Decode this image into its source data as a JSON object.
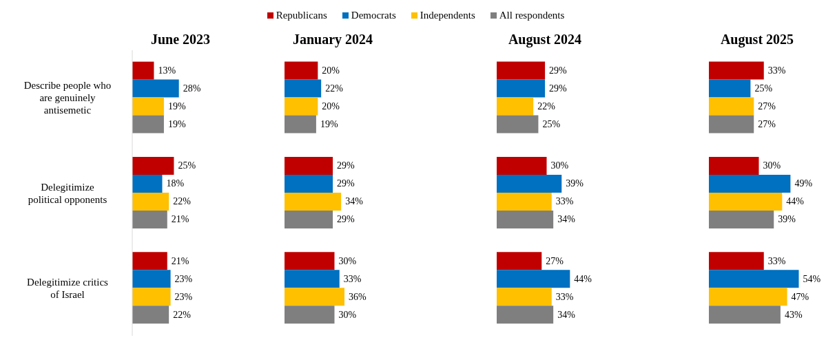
{
  "chart_data": [
    {
      "type": "bar",
      "orientation": "horizontal",
      "title": "June 2023",
      "categories": [
        "Describe people who are genuinely antisemetic",
        "Delegitimize political opponents",
        "Delegitimize critics of Israel"
      ],
      "tick_labels": "y",
      "legend": "top",
      "series": [
        {
          "name": "Republicans",
          "color": "#c00000",
          "values": [
            13,
            25,
            21
          ],
          "value_labels": [
            "13%",
            "25%",
            "21%"
          ]
        },
        {
          "name": "Democrats",
          "color": "#0070c0",
          "values": [
            28,
            18,
            23
          ],
          "value_labels": [
            "28%",
            "18%",
            "23%"
          ]
        },
        {
          "name": "Independents",
          "color": "#ffc000",
          "values": [
            19,
            22,
            23
          ],
          "value_labels": [
            "19%",
            "22%",
            "23%"
          ]
        },
        {
          "name": "All respondents",
          "color": "#7f7f7f",
          "values": [
            19,
            21,
            22
          ],
          "value_labels": [
            "19%",
            "21%",
            "22%"
          ]
        }
      ]
    },
    {
      "type": "bar",
      "orientation": "horizontal",
      "title": "January 2024",
      "categories": [
        null,
        null,
        null
      ],
      "tick_labels": false,
      "series": [
        {
          "color": "#c00000",
          "values": [
            20,
            29,
            30
          ],
          "value_labels": [
            "20%",
            "29%",
            "30%"
          ]
        },
        {
          "color": "#0070c0",
          "values": [
            22,
            29,
            33
          ],
          "value_labels": [
            "22%",
            "29%",
            "33%"
          ]
        },
        {
          "color": "#ffc000",
          "values": [
            20,
            34,
            36
          ],
          "value_labels": [
            "20%",
            "34%",
            "36%"
          ]
        },
        {
          "color": "#7f7f7f",
          "values": [
            19,
            29,
            30
          ],
          "value_labels": [
            "19%",
            "29%",
            "30%"
          ]
        }
      ]
    },
    {
      "type": "bar",
      "orientation": "horizontal",
      "title": "August 2024",
      "categories": [
        null,
        null,
        null
      ],
      "tick_labels": false,
      "series": [
        {
          "color": "#c00000",
          "values": [
            29,
            30,
            27
          ],
          "value_labels": [
            "29%",
            "30%",
            "27%"
          ]
        },
        {
          "color": "#0070c0",
          "values": [
            29,
            39,
            44
          ],
          "value_labels": [
            "29%",
            "39%",
            "44%"
          ]
        },
        {
          "color": "#ffc000",
          "values": [
            22,
            33,
            33
          ],
          "value_labels": [
            "22%",
            "33%",
            "33%"
          ]
        },
        {
          "color": "#7f7f7f",
          "values": [
            25,
            34,
            34
          ],
          "value_labels": [
            "25%",
            "34%",
            "34%"
          ]
        }
      ]
    },
    {
      "type": "bar",
      "orientation": "horizontal",
      "title": "August 2025",
      "categories": [
        null,
        null,
        null
      ],
      "tick_labels": false,
      "series": [
        {
          "color": "#c00000",
          "values": [
            33,
            30,
            33
          ],
          "value_labels": [
            "33%",
            "30%",
            "33%"
          ]
        },
        {
          "color": "#0070c0",
          "values": [
            25,
            49,
            54
          ],
          "value_labels": [
            "25%",
            "49%",
            "54%"
          ]
        },
        {
          "color": "#ffc000",
          "values": [
            27,
            44,
            47
          ],
          "value_labels": [
            "27%",
            "44%",
            "47%"
          ]
        },
        {
          "color": "#7f7f7f",
          "values": [
            27,
            39,
            43
          ],
          "value_labels": [
            "27%",
            "39%",
            "43%"
          ]
        }
      ]
    }
  ]
}
